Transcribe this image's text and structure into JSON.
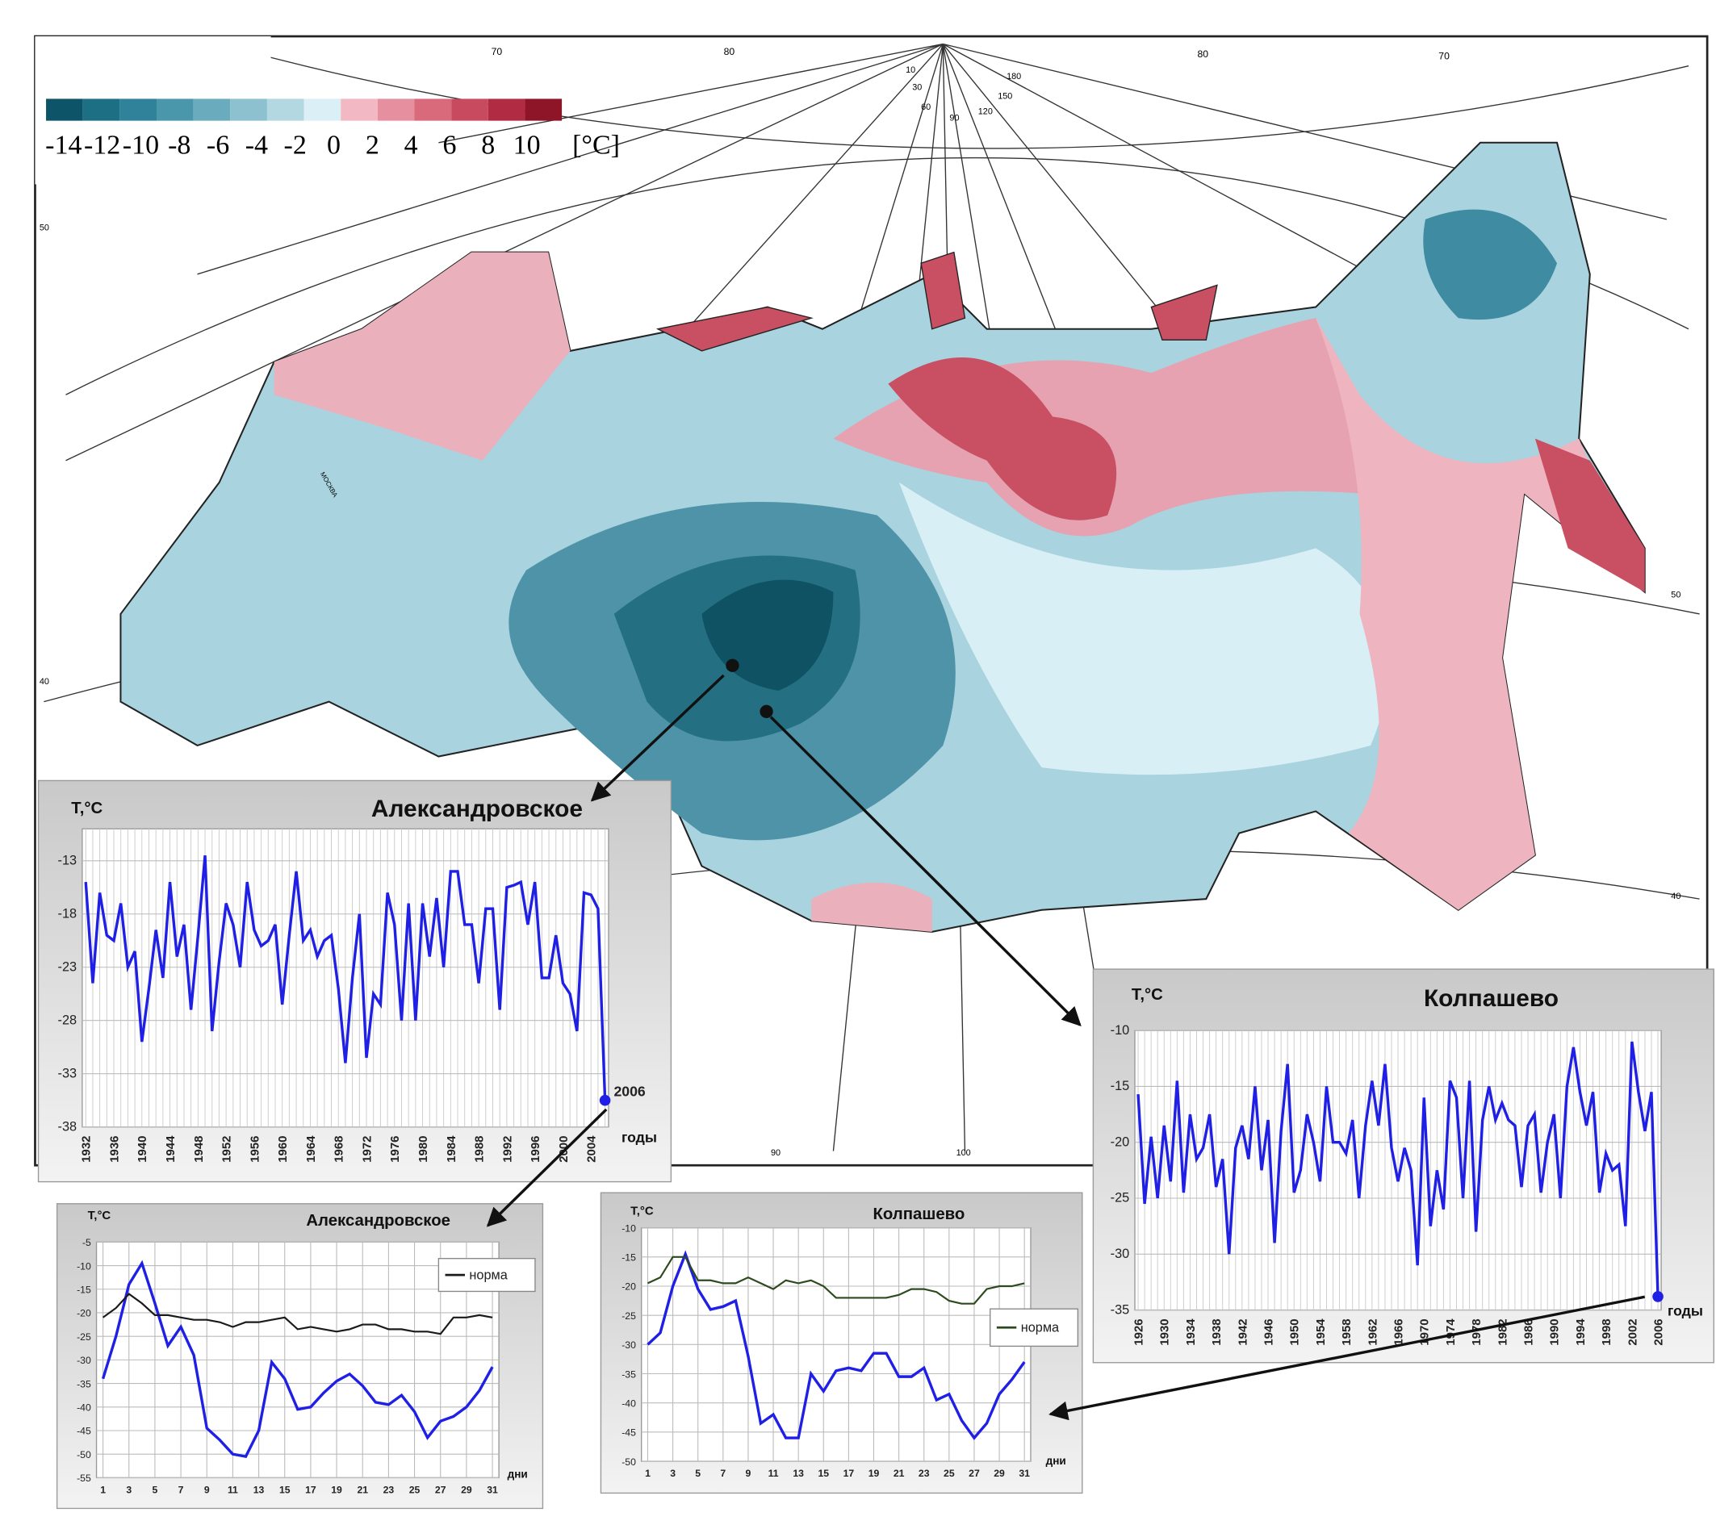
{
  "map": {
    "scale": {
      "colors": [
        "#0d5468",
        "#1d6f84",
        "#2f8299",
        "#4a97ac",
        "#6aabbd",
        "#8dc1cf",
        "#b3d8e2",
        "#daf0f6",
        "#f2b8c3",
        "#e6909f",
        "#d86a7c",
        "#c84a5e",
        "#b12c43",
        "#8e1428"
      ],
      "labels": [
        -14,
        -12,
        -10,
        -8,
        -6,
        -4,
        -2,
        0,
        2,
        4,
        6,
        8,
        10
      ],
      "unit": "[°C]"
    },
    "grid_labels": [
      "70",
      "80",
      "80",
      "70",
      "10",
      "30",
      "60",
      "90",
      "120",
      "150",
      "180",
      "50",
      "40",
      "50",
      "40",
      "90",
      "100",
      "МОСКВА"
    ]
  },
  "chart_data": [
    {
      "type": "line",
      "title": "Александровское",
      "y_label": "Т,°С",
      "x_label": "годы",
      "annotation": "2006",
      "x": [
        1932,
        1933,
        1934,
        1935,
        1936,
        1937,
        1938,
        1939,
        1940,
        1941,
        1942,
        1943,
        1944,
        1945,
        1946,
        1947,
        1948,
        1949,
        1950,
        1951,
        1952,
        1953,
        1954,
        1955,
        1956,
        1957,
        1958,
        1959,
        1960,
        1961,
        1962,
        1963,
        1964,
        1965,
        1966,
        1967,
        1968,
        1969,
        1970,
        1971,
        1972,
        1973,
        1974,
        1975,
        1976,
        1977,
        1978,
        1979,
        1980,
        1981,
        1982,
        1983,
        1984,
        1985,
        1986,
        1987,
        1988,
        1989,
        1990,
        1991,
        1992,
        1993,
        1994,
        1995,
        1996,
        1997,
        1998,
        1999,
        2000,
        2001,
        2002,
        2003,
        2004,
        2005,
        2006
      ],
      "series": [
        {
          "color": "#1f1fe6",
          "values": [
            -15,
            -24.5,
            -16,
            -20,
            -20.5,
            -17,
            -23,
            -21.5,
            -30,
            -25,
            -19.5,
            -24,
            -15,
            -22,
            -19,
            -27,
            -20,
            -12.5,
            -29,
            -22.5,
            -17,
            -19,
            -23,
            -15,
            -19.5,
            -21,
            -20.5,
            -19,
            -26.5,
            -20,
            -14,
            -20.5,
            -19.5,
            -22,
            -20.5,
            -20,
            -25,
            -32,
            -24,
            -18,
            -31.5,
            -25.5,
            -26.5,
            -16,
            -19,
            -28,
            -17,
            -28,
            -17,
            -22,
            -16.5,
            -23,
            -14,
            -14,
            -19,
            -19,
            -24.5,
            -17.5,
            -17.5,
            -27,
            -15.5,
            -15.3,
            -15,
            -19,
            -15,
            -24,
            -24,
            -20,
            -24.5,
            -25.5,
            -29,
            -16,
            -16.2,
            -17.5,
            -35.5
          ]
        }
      ],
      "xlim": [
        1931.5,
        2006.5
      ],
      "ylim": [
        -38,
        -10
      ],
      "xticks": [
        1932,
        1936,
        1940,
        1944,
        1948,
        1952,
        1956,
        1960,
        1964,
        1968,
        1972,
        1976,
        1980,
        1984,
        1988,
        1992,
        1996,
        2000,
        2004
      ],
      "yticks": [
        -13,
        -18,
        -23,
        -28,
        -33,
        -38
      ],
      "grid": true
    },
    {
      "type": "line",
      "title": "Колпашево",
      "y_label": "Т,°С",
      "x_label": "годы",
      "x": [
        1926,
        1927,
        1928,
        1929,
        1930,
        1931,
        1932,
        1933,
        1934,
        1935,
        1936,
        1937,
        1938,
        1939,
        1940,
        1941,
        1942,
        1943,
        1944,
        1945,
        1946,
        1947,
        1948,
        1949,
        1950,
        1951,
        1952,
        1953,
        1954,
        1955,
        1956,
        1957,
        1958,
        1959,
        1960,
        1961,
        1962,
        1963,
        1964,
        1965,
        1966,
        1967,
        1968,
        1969,
        1970,
        1971,
        1972,
        1973,
        1974,
        1975,
        1976,
        1977,
        1978,
        1979,
        1980,
        1981,
        1982,
        1983,
        1984,
        1985,
        1986,
        1987,
        1988,
        1989,
        1990,
        1991,
        1992,
        1993,
        1994,
        1995,
        1996,
        1997,
        1998,
        1999,
        2000,
        2001,
        2002,
        2003,
        2004,
        2005,
        2006
      ],
      "series": [
        {
          "color": "#1f1fe6",
          "values": [
            -15.7,
            -25.5,
            -19.5,
            -25,
            -18.5,
            -23.5,
            -14.5,
            -24.5,
            -17.5,
            -21.5,
            -20.5,
            -17.5,
            -24,
            -21.5,
            -30,
            -20.5,
            -18.5,
            -21.5,
            -15,
            -22.5,
            -18,
            -29,
            -19,
            -13,
            -24.5,
            -22.5,
            -17.5,
            -20,
            -23.5,
            -15,
            -20,
            -20,
            -21,
            -18,
            -25,
            -18.5,
            -14.5,
            -18.5,
            -13,
            -20.5,
            -23.5,
            -20.5,
            -22.5,
            -31,
            -16,
            -27.5,
            -22.5,
            -26,
            -14.5,
            -16,
            -25,
            -14.5,
            -28,
            -18,
            -15,
            -18,
            -16.5,
            -18,
            -18.5,
            -24,
            -18.5,
            -17.5,
            -24.5,
            -20,
            -17.5,
            -25,
            -15,
            -11.5,
            -15.5,
            -18.5,
            -15.5,
            -24.5,
            -21,
            -22.5,
            -22,
            -27.5,
            -11,
            -15.5,
            -19,
            -15.5,
            -33.8
          ]
        }
      ],
      "xlim": [
        1925.5,
        2006.5
      ],
      "ylim": [
        -35,
        -10
      ],
      "xticks": [
        1926,
        1930,
        1934,
        1938,
        1942,
        1946,
        1950,
        1954,
        1958,
        1962,
        1966,
        1970,
        1974,
        1978,
        1982,
        1986,
        1990,
        1994,
        1998,
        2002,
        2006
      ],
      "yticks": [
        -10,
        -15,
        -20,
        -25,
        -30,
        -35
      ],
      "grid": true
    },
    {
      "type": "line",
      "title": "Александровское",
      "y_label": "Т,°С",
      "x_label": "дни",
      "legend": "upper right",
      "x": [
        1,
        2,
        3,
        4,
        5,
        6,
        7,
        8,
        9,
        10,
        11,
        12,
        13,
        14,
        15,
        16,
        17,
        18,
        19,
        20,
        21,
        22,
        23,
        24,
        25,
        26,
        27,
        28,
        29,
        30,
        31
      ],
      "series": [
        {
          "color": "#1f1fe6",
          "values": [
            -34,
            -25,
            -14,
            -9.5,
            -18,
            -27,
            -23,
            -29,
            -44.5,
            -47,
            -50,
            -50.5,
            -45,
            -30.5,
            -34,
            -40.5,
            -40,
            -37,
            -34.5,
            -33,
            -35.5,
            -39,
            -39.5,
            -37.5,
            -41,
            -46.5,
            -43,
            -42,
            -40,
            -36.5,
            -31.5
          ]
        },
        {
          "name": "норма",
          "color": "#1a1a1a",
          "values": [
            -21,
            -19,
            -16,
            -18,
            -20.5,
            -20.5,
            -21,
            -21.5,
            -21.5,
            -22,
            -23,
            -22,
            -22,
            -21.5,
            -21,
            -23.5,
            -23,
            -23.5,
            -24,
            -23.5,
            -22.5,
            -22.5,
            -23.5,
            -23.5,
            -24,
            -24,
            -24.5,
            -21,
            -21,
            -20.5,
            -21
          ]
        }
      ],
      "xlim": [
        0.5,
        31.5
      ],
      "ylim": [
        -55,
        -5
      ],
      "xticks": [
        1,
        3,
        5,
        7,
        9,
        11,
        13,
        15,
        17,
        19,
        21,
        23,
        25,
        27,
        29,
        31
      ],
      "yticks": [
        -5,
        -10,
        -15,
        -20,
        -25,
        -30,
        -35,
        -40,
        -45,
        -50,
        -55
      ],
      "grid": true
    },
    {
      "type": "line",
      "title": "Колпашево",
      "y_label": "Т,°С",
      "x_label": "дни",
      "legend": "center right",
      "x": [
        1,
        2,
        3,
        4,
        5,
        6,
        7,
        8,
        9,
        10,
        11,
        12,
        13,
        14,
        15,
        16,
        17,
        18,
        19,
        20,
        21,
        22,
        23,
        24,
        25,
        26,
        27,
        28,
        29,
        30,
        31
      ],
      "series": [
        {
          "color": "#1f1fe6",
          "values": [
            -30,
            -28,
            -20,
            -14.5,
            -20.5,
            -24,
            -23.5,
            -22.5,
            -32,
            -43.5,
            -42,
            -46,
            -46,
            -35,
            -38,
            -34.5,
            -34,
            -34.5,
            -31.5,
            -31.5,
            -35.5,
            -35.5,
            -34,
            -39.5,
            -38.5,
            -43,
            -46,
            -43.5,
            -38.5,
            -36,
            -33
          ]
        },
        {
          "name": "норма",
          "color": "#2d4a1e",
          "values": [
            -19.5,
            -18.5,
            -15,
            -15,
            -19,
            -19,
            -19.5,
            -19.5,
            -18.5,
            -19.5,
            -20.5,
            -19,
            -19.5,
            -19,
            -20,
            -22,
            -22,
            -22,
            -22,
            -22,
            -21.5,
            -20.5,
            -20.5,
            -21,
            -22.5,
            -23,
            -23,
            -20.5,
            -20,
            -20,
            -19.5
          ]
        }
      ],
      "xlim": [
        0.5,
        31.5
      ],
      "ylim": [
        -50,
        -10
      ],
      "xticks": [
        1,
        3,
        5,
        7,
        9,
        11,
        13,
        15,
        17,
        19,
        21,
        23,
        25,
        27,
        29,
        31
      ],
      "yticks": [
        -10,
        -15,
        -20,
        -25,
        -30,
        -35,
        -40,
        -45,
        -50
      ],
      "grid": true
    }
  ]
}
